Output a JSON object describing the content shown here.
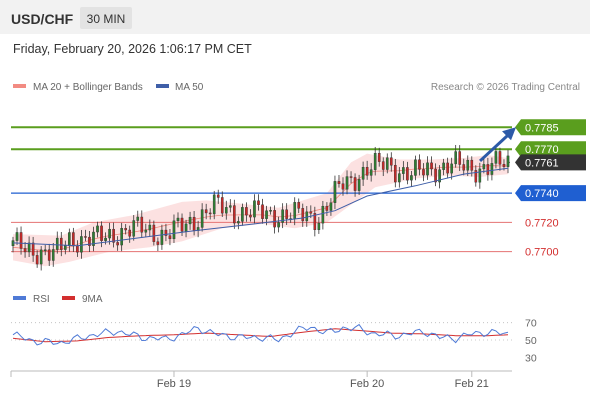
{
  "header": {
    "symbol": "USD/CHF",
    "timeframe": "30 MIN",
    "datetime": "Friday, February 20, 2026 1:06:17 PM CET"
  },
  "legend": {
    "ma_bb": "MA 20 + Bollinger Bands",
    "ma50": "MA 50",
    "rsi": "RSI",
    "ma9": "9MA",
    "credit": "Research © 2026 Trading Central"
  },
  "colors": {
    "bg": "#ffffff",
    "header_bg": "#f2f2f2",
    "bull": "#2e7d32",
    "bear": "#c62828",
    "bb_fill": "#fcdcdc",
    "ma20": "#f28b82",
    "ma50": "#3f5fa8",
    "green_level": "#5a9e1e",
    "blue_level": "#1f5fd1",
    "red_level": "#e57373",
    "current": "#333333",
    "arrow": "#2d5aa8",
    "rsi_line": "#4f7ad6",
    "rsi_ma": "#d32f2f"
  },
  "chart_data": {
    "type": "candlestick",
    "ylim": [
      0.7682,
      0.7805
    ],
    "levels": [
      {
        "label": "0.7785",
        "value": 0.7785,
        "kind": "resistance"
      },
      {
        "label": "0.7770",
        "value": 0.777,
        "kind": "resistance"
      },
      {
        "label": "0.7761",
        "value": 0.7761,
        "kind": "current"
      },
      {
        "label": "0.7740",
        "value": 0.774,
        "kind": "pivot"
      },
      {
        "label": "0.7720",
        "value": 0.772,
        "kind": "support"
      },
      {
        "label": "0.7700",
        "value": 0.77,
        "kind": "support"
      }
    ],
    "x_ticks": [
      {
        "label": "Feb 19",
        "index": 40
      },
      {
        "label": "Feb 20",
        "index": 88
      },
      {
        "label": "Feb 21",
        "index": 114
      }
    ],
    "total_slots": 124,
    "close_path": [
      [
        0,
        0.7704
      ],
      [
        6,
        0.7701
      ],
      [
        10,
        0.7697
      ],
      [
        14,
        0.7709
      ],
      [
        20,
        0.7708
      ],
      [
        26,
        0.7713
      ],
      [
        32,
        0.7716
      ],
      [
        38,
        0.7711
      ],
      [
        44,
        0.772
      ],
      [
        50,
        0.7731
      ],
      [
        56,
        0.7727
      ],
      [
        62,
        0.7726
      ],
      [
        68,
        0.7725
      ],
      [
        76,
        0.7724
      ],
      [
        82,
        0.7746
      ],
      [
        86,
        0.7753
      ],
      [
        88,
        0.7756
      ],
      [
        93,
        0.776
      ],
      [
        99,
        0.7752
      ],
      [
        104,
        0.7757
      ],
      [
        109,
        0.7759
      ],
      [
        114,
        0.7757
      ],
      [
        118,
        0.7758
      ],
      [
        123,
        0.776
      ]
    ],
    "ma50_path": [
      [
        0,
        0.7706
      ],
      [
        16,
        0.7704
      ],
      [
        30,
        0.7709
      ],
      [
        44,
        0.7714
      ],
      [
        60,
        0.7719
      ],
      [
        72,
        0.7723
      ],
      [
        80,
        0.7728
      ],
      [
        88,
        0.7738
      ],
      [
        100,
        0.7745
      ],
      [
        112,
        0.7753
      ],
      [
        123,
        0.7757
      ]
    ],
    "bb_upper_path": [
      [
        0,
        0.7712
      ],
      [
        12,
        0.7711
      ],
      [
        20,
        0.772
      ],
      [
        30,
        0.7725
      ],
      [
        42,
        0.7734
      ],
      [
        48,
        0.7735
      ],
      [
        56,
        0.7733
      ],
      [
        66,
        0.773
      ],
      [
        78,
        0.774
      ],
      [
        84,
        0.7761
      ],
      [
        88,
        0.7767
      ],
      [
        96,
        0.7763
      ],
      [
        104,
        0.7763
      ],
      [
        112,
        0.7764
      ],
      [
        118,
        0.7766
      ],
      [
        123,
        0.7764
      ]
    ],
    "bb_lower_path": [
      [
        0,
        0.7694
      ],
      [
        8,
        0.769
      ],
      [
        14,
        0.7693
      ],
      [
        24,
        0.77
      ],
      [
        34,
        0.7703
      ],
      [
        42,
        0.7707
      ],
      [
        52,
        0.7716
      ],
      [
        62,
        0.7719
      ],
      [
        70,
        0.7716
      ],
      [
        78,
        0.772
      ],
      [
        84,
        0.7732
      ],
      [
        90,
        0.7744
      ],
      [
        100,
        0.775
      ],
      [
        108,
        0.7752
      ],
      [
        116,
        0.7751
      ],
      [
        123,
        0.7753
      ]
    ],
    "arrow": {
      "from": [
        124,
        0.7762
      ],
      "to": [
        130,
        0.7785
      ]
    },
    "rsi": {
      "ylim": [
        20,
        80
      ],
      "ticks": [
        70,
        50,
        30
      ],
      "rsi_path": [
        [
          0,
          56
        ],
        [
          6,
          48
        ],
        [
          12,
          47
        ],
        [
          20,
          56
        ],
        [
          26,
          60
        ],
        [
          32,
          53
        ],
        [
          38,
          51
        ],
        [
          42,
          56
        ],
        [
          46,
          64
        ],
        [
          50,
          57
        ],
        [
          56,
          53
        ],
        [
          62,
          53
        ],
        [
          66,
          50
        ],
        [
          70,
          60
        ],
        [
          74,
          65
        ],
        [
          78,
          58
        ],
        [
          82,
          64
        ],
        [
          86,
          63
        ],
        [
          90,
          57
        ],
        [
          96,
          55
        ],
        [
          102,
          60
        ],
        [
          106,
          53
        ],
        [
          110,
          52
        ],
        [
          114,
          57
        ],
        [
          118,
          59
        ],
        [
          123,
          57
        ]
      ],
      "ma_path": [
        [
          0,
          52
        ],
        [
          8,
          48
        ],
        [
          16,
          49
        ],
        [
          24,
          53
        ],
        [
          32,
          55
        ],
        [
          40,
          56
        ],
        [
          48,
          58
        ],
        [
          56,
          56
        ],
        [
          64,
          54
        ],
        [
          72,
          59
        ],
        [
          80,
          63
        ],
        [
          86,
          61
        ],
        [
          94,
          58
        ],
        [
          102,
          57
        ],
        [
          110,
          55
        ],
        [
          118,
          55
        ],
        [
          123,
          56
        ]
      ]
    }
  }
}
